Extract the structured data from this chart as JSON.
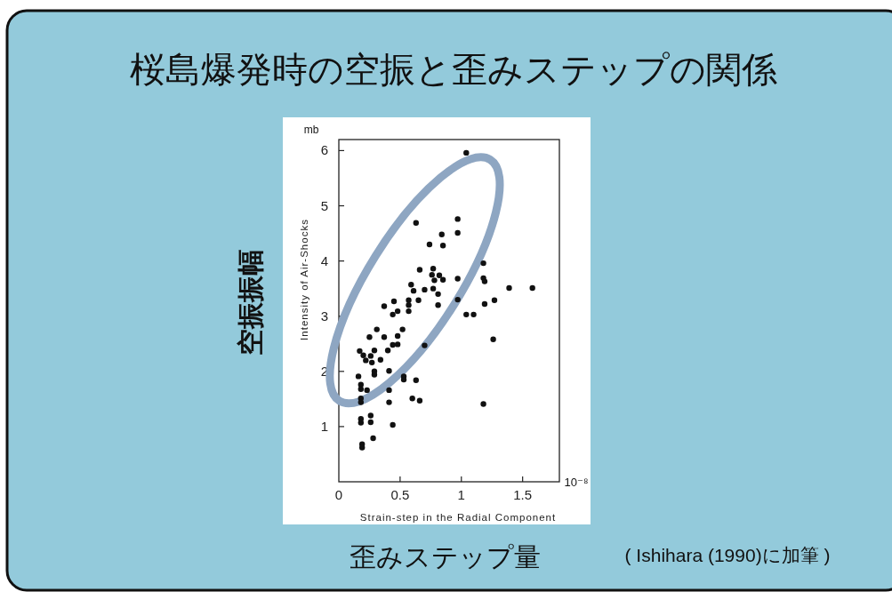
{
  "chart_data": {
    "type": "scatter",
    "title": "桜島爆発時の空振と歪みステップの関係",
    "xlabel": "Strain-step in the Radial Component",
    "ylabel": "Intensity of Air-Shocks",
    "annotations": [
      "mb",
      "10⁻⁸",
      "空振振幅",
      "歪みステップ量",
      "( Ishihara (1990)に加筆 )"
    ],
    "color": "#111111",
    "marker": "circle",
    "grid": false,
    "xlim": [
      0,
      1.8
    ],
    "ylim": [
      0,
      6.2
    ],
    "xticks": [
      0,
      0.5,
      1,
      1.5
    ],
    "yticks": [
      1,
      2,
      3,
      4,
      5,
      6
    ],
    "x": [
      1.04,
      0.63,
      0.97,
      0.97,
      0.84,
      0.74,
      0.85,
      1.18,
      0.66,
      0.77,
      0.76,
      0.82,
      0.78,
      0.85,
      0.97,
      1.18,
      1.19,
      0.59,
      0.61,
      0.7,
      0.77,
      0.81,
      1.39,
      1.58,
      0.97,
      0.65,
      0.81,
      0.57,
      0.57,
      0.57,
      0.45,
      0.37,
      0.48,
      0.44,
      1.04,
      1.1,
      1.19,
      1.27,
      1.26,
      0.52,
      0.31,
      0.25,
      0.37,
      0.48,
      0.44,
      0.48,
      0.7,
      0.17,
      0.29,
      0.4,
      0.2,
      0.26,
      0.22,
      0.27,
      0.34,
      0.29,
      0.29,
      0.41,
      0.16,
      0.18,
      0.18,
      0.23,
      0.53,
      0.53,
      0.63,
      0.41,
      0.18,
      0.18,
      0.41,
      0.6,
      0.66,
      1.18,
      0.26,
      0.18,
      0.18,
      0.26,
      0.44,
      0.28,
      0.19,
      0.19
    ],
    "values": [
      5.96,
      4.69,
      4.76,
      4.51,
      4.48,
      4.3,
      4.28,
      3.96,
      3.84,
      3.86,
      3.75,
      3.74,
      3.65,
      3.66,
      3.68,
      3.69,
      3.63,
      3.57,
      3.46,
      3.48,
      3.5,
      3.4,
      3.51,
      3.51,
      3.3,
      3.29,
      3.2,
      3.29,
      3.2,
      3.09,
      3.27,
      3.18,
      3.09,
      3.03,
      3.03,
      3.03,
      3.22,
      3.29,
      2.58,
      2.76,
      2.76,
      2.62,
      2.62,
      2.64,
      2.48,
      2.49,
      2.47,
      2.37,
      2.38,
      2.38,
      2.29,
      2.28,
      2.2,
      2.16,
      2.21,
      2.0,
      1.94,
      2.01,
      1.91,
      1.76,
      1.68,
      1.66,
      1.91,
      1.85,
      1.84,
      1.66,
      1.51,
      1.44,
      1.44,
      1.51,
      1.47,
      1.41,
      1.2,
      1.14,
      1.07,
      1.08,
      1.03,
      0.79,
      0.68,
      0.62
    ]
  }
}
